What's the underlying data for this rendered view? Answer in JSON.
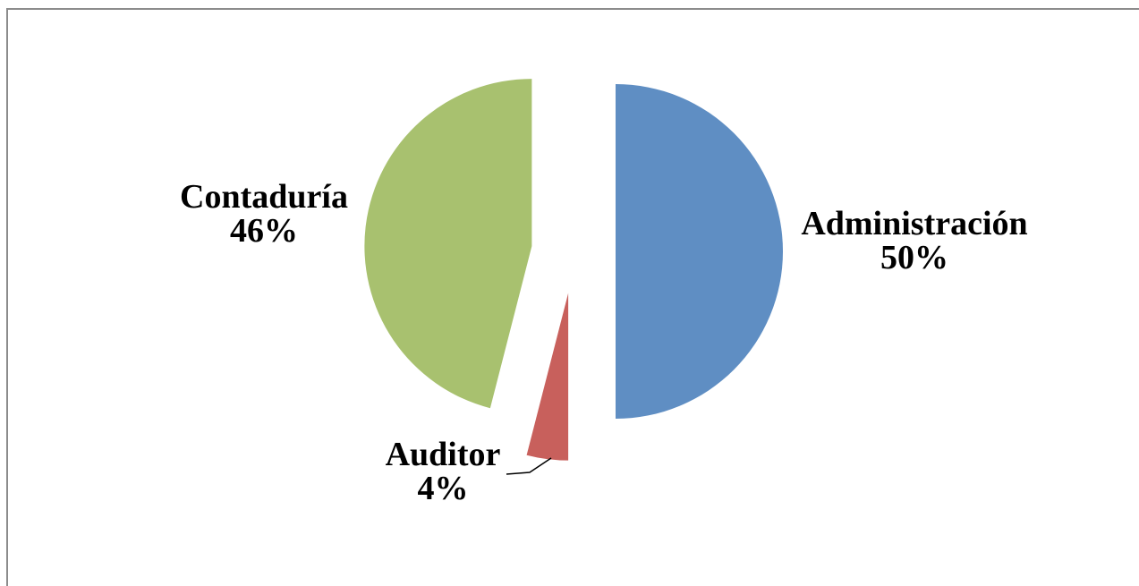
{
  "chart_data": {
    "type": "pie",
    "categories": [
      "Administración",
      "Auditor",
      "Contaduría"
    ],
    "values": [
      50,
      4,
      46
    ],
    "value_labels": [
      "50%",
      "4%",
      "46%"
    ],
    "colors": [
      "#5f8ec3",
      "#c8605c",
      "#a8c16f"
    ]
  }
}
